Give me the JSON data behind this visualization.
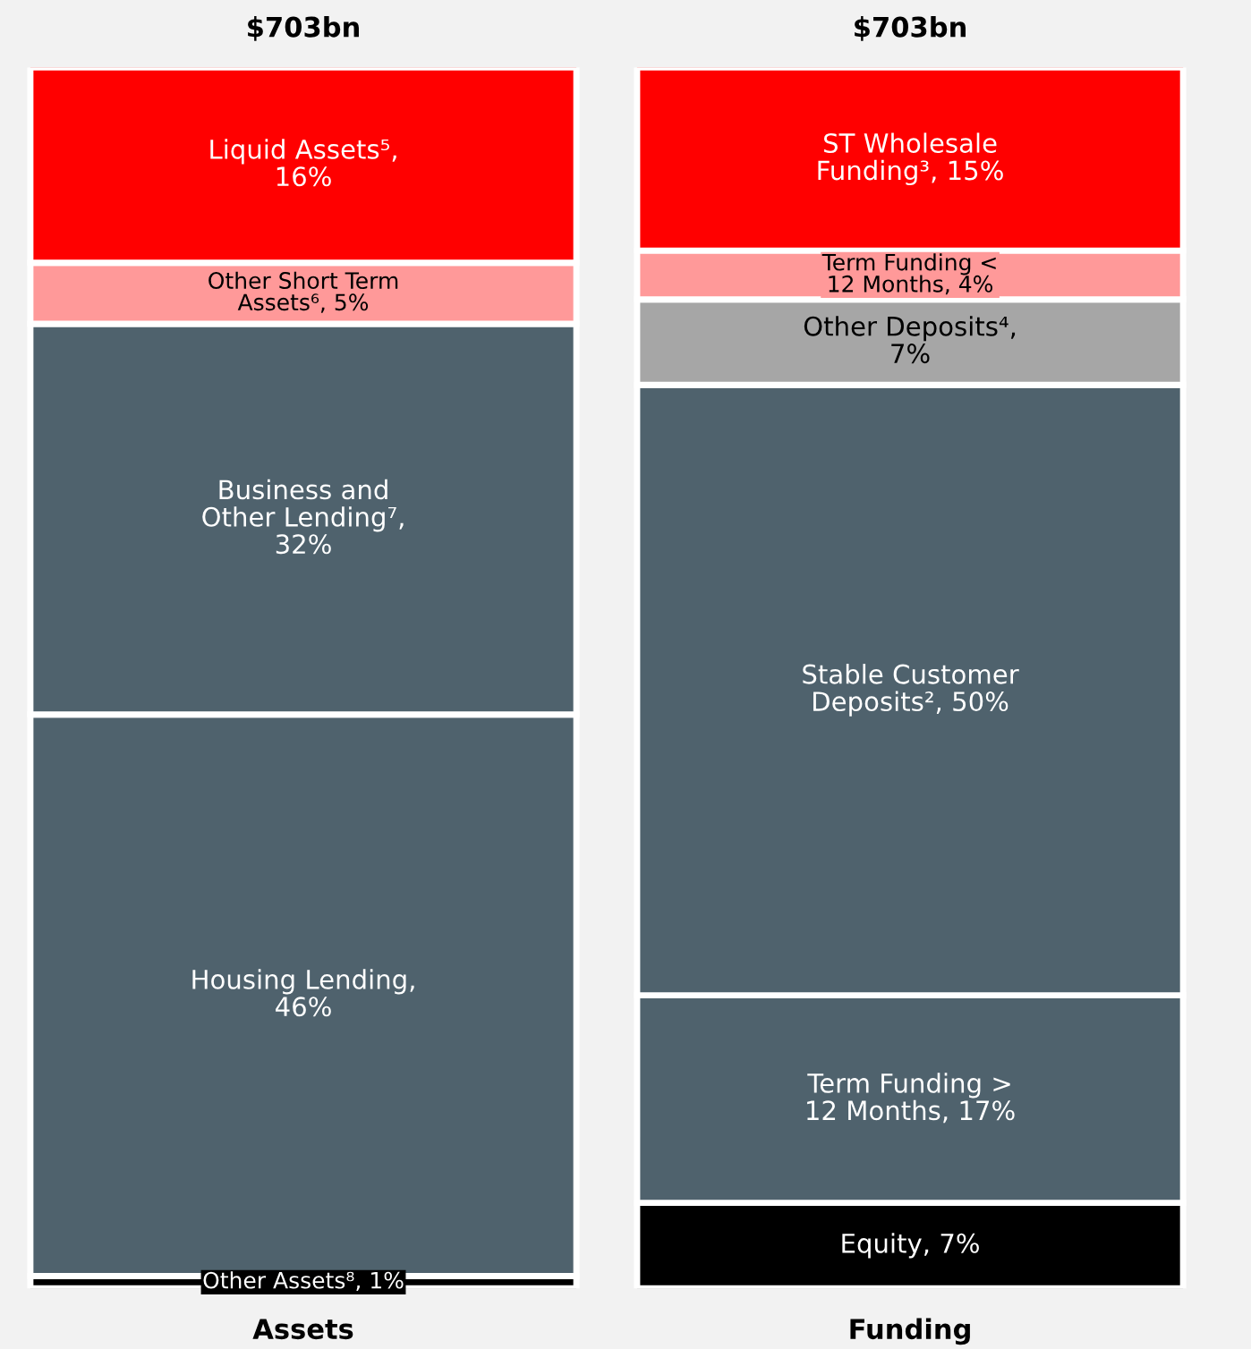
{
  "chart_data": {
    "type": "bar",
    "stacked": true,
    "categories": [
      "Assets",
      "Funding"
    ],
    "ylim": [
      0,
      100
    ],
    "tick_labels": "x",
    "annotations": [
      {
        "text": "$703bn",
        "x": "Assets",
        "y": 100
      },
      {
        "text": "$703bn",
        "x": "Funding",
        "y": 100
      }
    ],
    "series": [
      {
        "color": "#000000",
        "values": [
          1,
          null
        ],
        "value_labels": [
          "Other Assets⁸, 1%",
          null
        ]
      },
      {
        "color": "#4f626d",
        "values": [
          46,
          null
        ],
        "value_labels": [
          "Housing Lending,\n46%",
          null
        ]
      },
      {
        "color": "#4f626d",
        "values": [
          32,
          null
        ],
        "value_labels": [
          "Business and\nOther Lending⁷,\n32%",
          null
        ]
      },
      {
        "color": "#ff9999",
        "values": [
          5,
          null
        ],
        "value_labels": [
          "Other Short Term\nAssets⁶, 5%",
          null
        ]
      },
      {
        "color": "#ff0000",
        "values": [
          16,
          null
        ],
        "value_labels": [
          "Liquid Assets⁵,\n16%",
          null
        ]
      },
      {
        "color": "#000000",
        "values": [
          null,
          7
        ],
        "value_labels": [
          null,
          "Equity, 7%"
        ]
      },
      {
        "color": "#4f626d",
        "values": [
          null,
          17
        ],
        "value_labels": [
          null,
          "Term Funding >\n12 Months, 17%"
        ]
      },
      {
        "color": "#4f626d",
        "values": [
          null,
          50
        ],
        "value_labels": [
          null,
          "Stable Customer\nDeposits², 50%"
        ]
      },
      {
        "color": "#a6a6a6",
        "values": [
          null,
          7
        ],
        "value_labels": [
          null,
          "Other Deposits⁴,\n7%"
        ]
      },
      {
        "color": "#ff9999",
        "values": [
          null,
          4
        ],
        "value_labels": [
          null,
          "Term Funding <\n12 Months, 4%"
        ]
      },
      {
        "color": "#ff0000",
        "values": [
          null,
          15
        ],
        "value_labels": [
          null,
          "ST Wholesale\nFunding³, 15%"
        ]
      }
    ]
  }
}
